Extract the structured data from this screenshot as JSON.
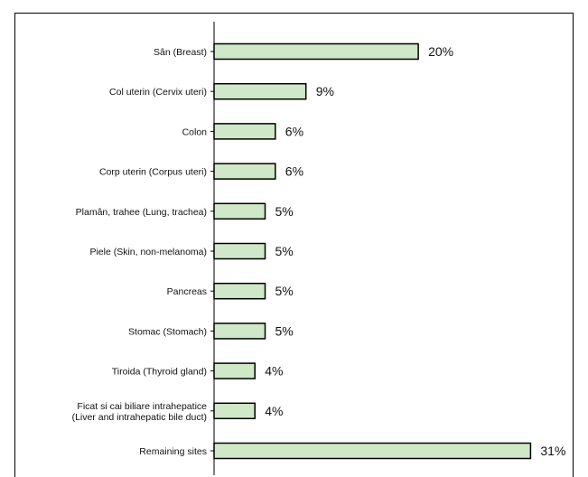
{
  "colors": {
    "bar_fill": "#cfe8c7",
    "bar_stroke": "#000000",
    "axis": "#000000",
    "frame": "#000000"
  },
  "chart_data": {
    "type": "bar",
    "orientation": "horizontal",
    "title": "",
    "xlabel": "",
    "ylabel": "",
    "grid": false,
    "legend": "none",
    "categories": [
      [
        "Sân (Breast)"
      ],
      [
        "Col uterin (Cervix uteri)"
      ],
      [
        "Colon"
      ],
      [
        "Corp uterin (Corpus uteri)"
      ],
      [
        "Plamân, trahee (Lung, trachea)"
      ],
      [
        "Piele (Skin, non-melanoma)"
      ],
      [
        "Pancreas"
      ],
      [
        "Stomac (Stomach)"
      ],
      [
        "Tiroida (Thyroid gland)"
      ],
      [
        "Ficat si cai biliare intrahepatice",
        "(Liver and intrahepatic bile duct)"
      ],
      [
        "Remaining sites"
      ]
    ],
    "values": [
      20,
      9,
      6,
      6,
      5,
      5,
      5,
      5,
      4,
      4,
      31
    ],
    "value_labels": [
      "20%",
      "9%",
      "6%",
      "6%",
      "5%",
      "5%",
      "5%",
      "5%",
      "4%",
      "4%",
      "31%"
    ],
    "xlim": [
      0,
      33
    ]
  }
}
